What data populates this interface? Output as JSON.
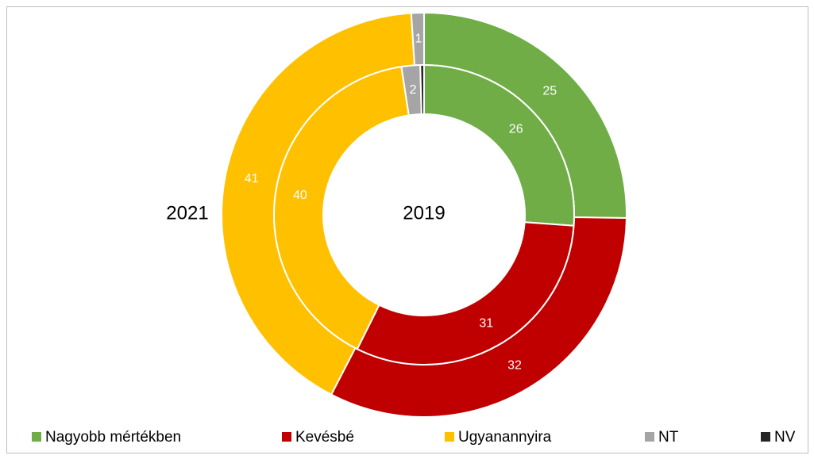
{
  "chart_data": {
    "type": "doughnut",
    "categories": [
      "Nagyobb mértékben",
      "Kevésbé",
      "Ugyanannyira",
      "NT",
      "NV"
    ],
    "colors": [
      "#70ad47",
      "#c00000",
      "#ffc000",
      "#a5a5a5",
      "#262626"
    ],
    "series": [
      {
        "name": "2021",
        "values": [
          25,
          32,
          41,
          1,
          0
        ]
      },
      {
        "name": "2019",
        "values": [
          26,
          31,
          40,
          2,
          0.4
        ]
      }
    ],
    "legend": "bottom"
  }
}
